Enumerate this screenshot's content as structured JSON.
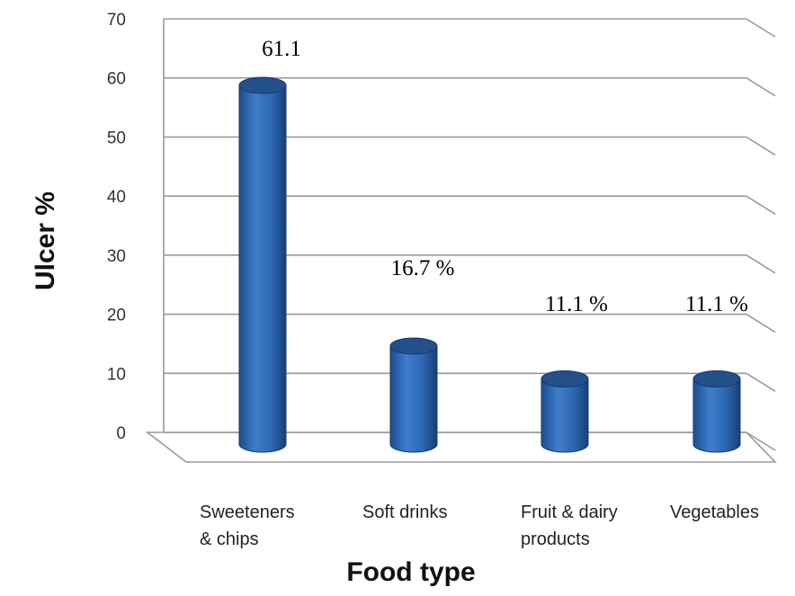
{
  "chart_data": {
    "type": "bar",
    "style": "3d-cylinder",
    "categories": [
      [
        "Sweeteners",
        "& chips"
      ],
      [
        "Soft drinks"
      ],
      [
        "Fruit & dairy",
        "products"
      ],
      [
        "Vegetables"
      ]
    ],
    "values": [
      61.1,
      16.7,
      11.1,
      11.1
    ],
    "data_labels": [
      "61.1",
      "16.7 %",
      "11.1 %",
      "11.1 %"
    ],
    "xlabel": "Food type",
    "ylabel": "Ulcer %",
    "ylim": [
      0,
      70
    ],
    "yticks": [
      0,
      10,
      20,
      30,
      40,
      50,
      60,
      70
    ],
    "grid": true,
    "legend": "none",
    "colors": {
      "bar": "#2e67b1",
      "bar_dark": "#143a6e",
      "bar_light": "#5a8fd2",
      "grid": "#9a9a9a"
    }
  }
}
